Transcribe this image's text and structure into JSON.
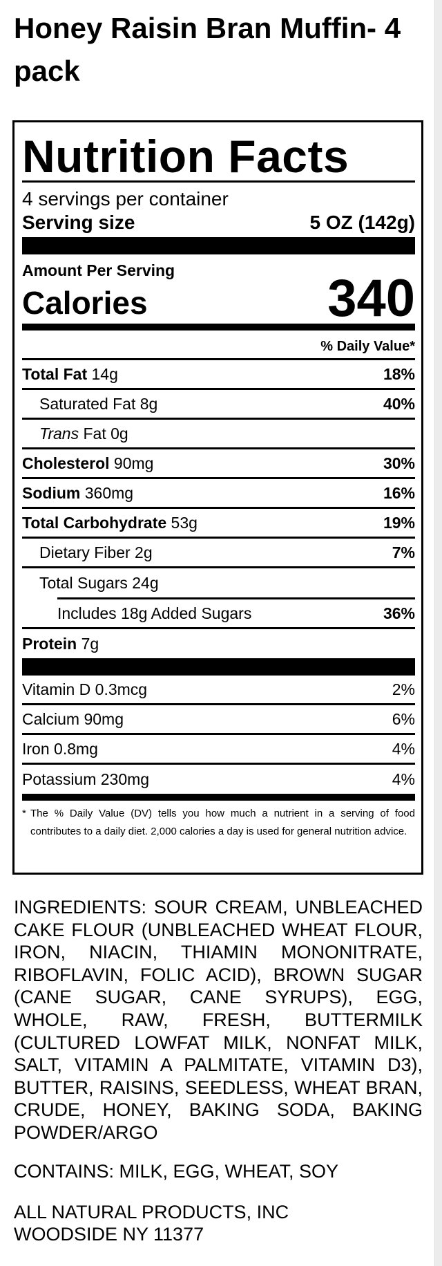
{
  "product": {
    "title": "Honey Raisin Bran Muffin- 4 pack"
  },
  "label": {
    "heading": "Nutrition Facts",
    "servings_per_container": "4 servings per container",
    "serving_size_label": "Serving size",
    "serving_size_value": "5 OZ (142g)",
    "amount_per_serving": "Amount Per Serving",
    "calories_label": "Calories",
    "calories_value": "340",
    "daily_value_header": "% Daily Value*",
    "nutrients": [
      {
        "name": "Total Fat",
        "amount": "14g",
        "dv": "18%"
      },
      {
        "name": "Saturated Fat 8g",
        "dv": "40%"
      },
      {
        "name_italic": "Trans",
        "name": "Fat 0g"
      },
      {
        "name": "Cholesterol",
        "amount": "90mg",
        "dv": "30%"
      },
      {
        "name": "Sodium",
        "amount": "360mg",
        "dv": "16%"
      },
      {
        "name": "Total Carbohydrate",
        "amount": "53g",
        "dv": "19%"
      },
      {
        "name": "Dietary Fiber 2g",
        "dv": "7%"
      },
      {
        "name": "Total Sugars 24g"
      },
      {
        "name": "Includes 18g Added Sugars",
        "dv": "36%"
      },
      {
        "name": "Protein",
        "amount": "7g"
      }
    ],
    "vitamins": [
      {
        "name": "Vitamin D 0.3mcg",
        "dv": "2%"
      },
      {
        "name": "Calcium 90mg",
        "dv": "6%"
      },
      {
        "name": "Iron 0.8mg",
        "dv": "4%"
      },
      {
        "name": "Potassium 230mg",
        "dv": "4%"
      }
    ],
    "footnote_star": "*",
    "footnote": "The % Daily Value (DV) tells you how much a nutrient in a serving of food contributes to a daily diet. 2,000 calories a day is used for general nutrition advice."
  },
  "ingredients": "INGREDIENTS: SOUR CREAM, UNBLEACHED CAKE FLOUR (UNBLEACHED WHEAT FLOUR, IRON, NIACIN, THIAMIN MONONITRATE, RIBOFLAVIN, FOLIC ACID), BROWN SUGAR (CANE SUGAR, CANE SYRUPS), EGG, WHOLE, RAW, FRESH, BUTTERMILK (CULTURED LOWFAT MILK, NONFAT MILK, SALT, VITAMIN A PALMITATE, VITAMIN D3), BUTTER, RAISINS, SEEDLESS, WHEAT BRAN, CRUDE, HONEY, BAKING SODA, BAKING POWDER/ARGO",
  "contains": "CONTAINS: MILK, EGG, WHEAT, SOY",
  "manufacturer": {
    "name": "ALL NATURAL PRODUCTS, INC",
    "address": "WOODSIDE NY 11377"
  }
}
